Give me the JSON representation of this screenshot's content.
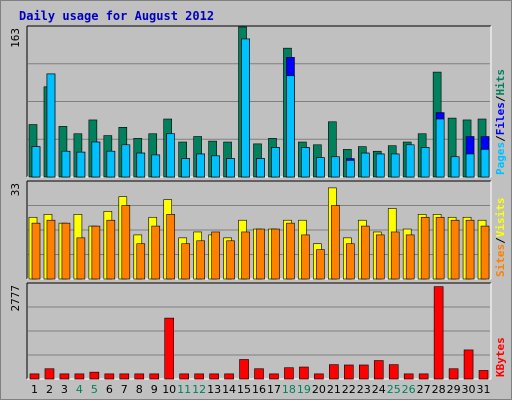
{
  "chart_data": {
    "type": "bar",
    "title": "Daily usage for August 2012",
    "colors": {
      "background": "#c0c0c0",
      "title": "#0000c0",
      "hits": "#00805c",
      "files": "#0000ff",
      "pages": "#00c0ff",
      "visits": "#ffff00",
      "sites": "#ff8000",
      "kbytes": "#ff0000",
      "weekend_label": "#00805c"
    },
    "categories": [
      "1",
      "2",
      "3",
      "4",
      "5",
      "6",
      "7",
      "8",
      "9",
      "10",
      "11",
      "12",
      "13",
      "14",
      "15",
      "16",
      "17",
      "18",
      "19",
      "20",
      "21",
      "22",
      "23",
      "24",
      "25",
      "26",
      "27",
      "28",
      "29",
      "30",
      "31"
    ],
    "weekend_days": [
      "4",
      "5",
      "11",
      "12",
      "18",
      "19",
      "25",
      "26"
    ],
    "panels": [
      {
        "id": "hits_files_pages",
        "ymax_label": "163",
        "ylim": [
          0,
          163
        ],
        "legend": [
          "Pages",
          "/",
          "Files",
          "/",
          "Hits"
        ],
        "series": [
          {
            "name": "Hits",
            "values": [
              57,
              98,
              55,
              47,
              62,
              45,
              54,
              42,
              47,
              63,
              38,
              44,
              39,
              38,
              163,
              36,
              42,
              140,
              38,
              35,
              60,
              30,
              33,
              28,
              34,
              38,
              47,
              114,
              64,
              62,
              63
            ]
          },
          {
            "name": "Files",
            "values": [
              33,
              112,
              28,
              27,
              38,
              28,
              35,
              26,
              24,
              47,
              20,
              25,
              23,
              20,
              150,
              20,
              32,
              130,
              32,
              21,
              22,
              20,
              26,
              25,
              25,
              35,
              32,
              70,
              22,
              44,
              44
            ]
          },
          {
            "name": "Pages",
            "values": [
              33,
              112,
              28,
              27,
              38,
              28,
              35,
              26,
              24,
              47,
              20,
              25,
              23,
              20,
              150,
              20,
              32,
              110,
              32,
              21,
              22,
              18,
              26,
              25,
              25,
              35,
              32,
              63,
              22,
              25,
              30
            ]
          }
        ]
      },
      {
        "id": "visits_sites",
        "ymax_label": "33",
        "ylim": [
          0,
          33
        ],
        "legend": [
          "Sites",
          "/",
          "Visits"
        ],
        "series": [
          {
            "name": "Visits",
            "values": [
              21,
              22,
              19,
              22,
              18,
              23,
              28,
              15,
              21,
              27,
              14,
              16,
              15,
              14,
              20,
              17,
              17,
              20,
              20,
              12,
              31,
              14,
              20,
              16,
              24,
              17,
              22,
              22,
              21,
              21,
              20
            ]
          },
          {
            "name": "Sites",
            "values": [
              19,
              20,
              19,
              14,
              18,
              20,
              25,
              12,
              18,
              22,
              12,
              13,
              16,
              13,
              16,
              17,
              17,
              19,
              15,
              10,
              25,
              12,
              18,
              15,
              16,
              15,
              21,
              21,
              20,
              20,
              18
            ]
          }
        ]
      },
      {
        "id": "kbytes",
        "ymax_label": "2777",
        "ylim": [
          0,
          2777
        ],
        "legend": [
          "KBytes"
        ],
        "series": [
          {
            "name": "KBytes",
            "values": [
              150,
              300,
              150,
              150,
              200,
              150,
              150,
              150,
              150,
              1780,
              150,
              150,
              150,
              150,
              570,
              300,
              150,
              330,
              350,
              150,
              420,
              410,
              410,
              540,
              420,
              150,
              150,
              2700,
              300,
              850,
              250
            ]
          }
        ]
      }
    ]
  }
}
